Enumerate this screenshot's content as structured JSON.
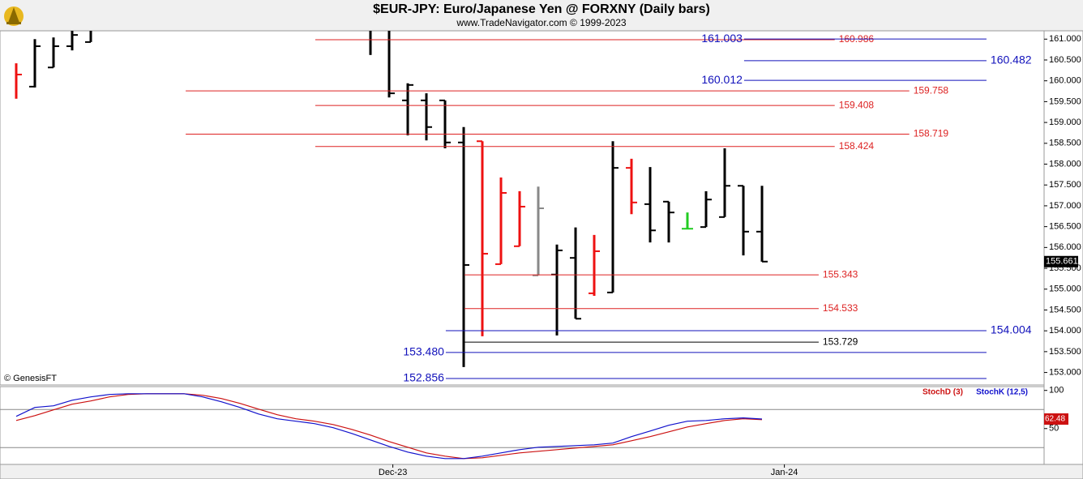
{
  "chart_data": {
    "type": "ohlc",
    "title": "$EUR-JPY:  Euro/Japanese Yen @ FORXNY  (Daily bars)",
    "subtitle": "www.TradeNavigator.com © 1999-2023",
    "watermark": "© GenesisFT",
    "xlim": [
      -0.87,
      55.13
    ],
    "xticks": [
      {
        "value": 20.2,
        "label": "Dec-23"
      },
      {
        "value": 41.2,
        "label": "Jan-24"
      }
    ],
    "ylim": [
      152.7,
      161.2
    ],
    "yticks": [
      {
        "value": 153,
        "label": "153.000"
      },
      {
        "value": 153.5,
        "label": "153.500"
      },
      {
        "value": 154,
        "label": "154.000"
      },
      {
        "value": 154.5,
        "label": "154.500"
      },
      {
        "value": 155,
        "label": "155.000"
      },
      {
        "value": 155.5,
        "label": "155.500"
      },
      {
        "value": 156,
        "label": "156.000"
      },
      {
        "value": 156.5,
        "label": "156.500"
      },
      {
        "value": 157,
        "label": "157.000"
      },
      {
        "value": 157.5,
        "label": "157.500"
      },
      {
        "value": 158,
        "label": "158.000"
      },
      {
        "value": 158.5,
        "label": "158.500"
      },
      {
        "value": 159,
        "label": "159.000"
      },
      {
        "value": 159.5,
        "label": "159.500"
      },
      {
        "value": 160,
        "label": "160.000"
      },
      {
        "value": 160.5,
        "label": "160.500"
      },
      {
        "value": 161,
        "label": "161.000"
      }
    ],
    "bars": {
      "x": [
        0,
        1,
        2,
        3,
        4,
        19,
        20,
        21,
        22,
        23,
        24,
        25,
        26,
        27,
        28,
        29,
        30,
        31,
        32,
        33,
        34,
        35,
        36,
        37,
        38,
        39,
        40
      ],
      "open": [
        null,
        159.86,
        160.32,
        160.83,
        160.93,
        null,
        null,
        159.53,
        159.53,
        159.53,
        158.52,
        158.55,
        155.6,
        156.03,
        155.33,
        155.35,
        155.75,
        154.9,
        154.92,
        157.91,
        157.04,
        157.1,
        156.45,
        156.49,
        156.73,
        157.48,
        156.38
      ],
      "high": [
        160.42,
        161.0,
        161.04,
        161.2,
        161.2,
        161.2,
        161.2,
        159.94,
        159.7,
        159.53,
        158.89,
        158.55,
        157.68,
        157.35,
        157.46,
        156.07,
        156.48,
        156.3,
        158.55,
        158.13,
        157.93,
        157.1,
        156.84,
        157.35,
        158.38,
        157.48,
        157.48
      ],
      "low": [
        159.57,
        159.84,
        160.32,
        160.73,
        160.93,
        160.62,
        159.6,
        158.69,
        158.57,
        158.38,
        153.13,
        153.87,
        155.6,
        156.03,
        155.33,
        153.89,
        154.29,
        154.84,
        154.92,
        156.8,
        156.12,
        156.12,
        156.45,
        156.49,
        156.73,
        155.81,
        155.66
      ],
      "close": [
        160.15,
        160.83,
        160.83,
        161.1,
        null,
        null,
        159.7,
        159.9,
        158.89,
        158.52,
        155.58,
        155.85,
        157.31,
        156.98,
        156.94,
        155.93,
        154.29,
        155.91,
        157.91,
        157.08,
        156.41,
        156.84,
        156.45,
        157.15,
        157.48,
        156.38,
        155.661
      ],
      "colors": [
        "#ee1111",
        "#000000",
        "#000000",
        "#000000",
        "#000000",
        "#000000",
        "#000000",
        "#000000",
        "#000000",
        "#000000",
        "#000000",
        "#ee1111",
        "#ee1111",
        "#ee1111",
        "#888888",
        "#000000",
        "#000000",
        "#ee1111",
        "#000000",
        "#ee1111",
        "#000000",
        "#000000",
        "#22cc22",
        "#000000",
        "#000000",
        "#000000",
        "#000000"
      ]
    },
    "levels": {
      "values": [
        160.986,
        161.003,
        160.482,
        160.012,
        159.758,
        159.408,
        158.719,
        158.424,
        155.343,
        154.533,
        154.004,
        153.729,
        153.48,
        152.856
      ],
      "value_labels": [
        "160.986",
        "161.003",
        "160.482",
        "160.012",
        "159.758",
        "159.408",
        "158.719",
        "158.424",
        "155.343",
        "154.533",
        "154.004",
        "153.729",
        "153.480",
        "152.856"
      ],
      "colors": [
        "#dd2222",
        "#1111bb",
        "#1111bb",
        "#1111bb",
        "#dd2222",
        "#dd2222",
        "#dd2222",
        "#dd2222",
        "#dd2222",
        "#dd2222",
        "#1111bb",
        "#000000",
        "#1111bb",
        "#1111bb"
      ],
      "x_from": [
        16.04,
        39.04,
        39.04,
        39.04,
        9.09,
        16.04,
        9.09,
        16.04,
        24.04,
        24.04,
        23.04,
        24.04,
        23.04,
        23.04
      ],
      "x_to": [
        43.9,
        52.04,
        52.04,
        52.04,
        47.9,
        43.9,
        47.9,
        43.9,
        43.04,
        43.04,
        52.04,
        43.04,
        52.04,
        52.04
      ],
      "label_side": [
        "right",
        "left",
        "right",
        "left",
        "right",
        "right",
        "right",
        "right",
        "right",
        "right",
        "right",
        "right",
        "left",
        "left"
      ]
    },
    "stoch": {
      "ylim": [
        3,
        105
      ],
      "yticks": [
        50,
        100
      ],
      "ref_lines": [
        25,
        75
      ],
      "series": [
        {
          "name": "StochD (3)",
          "color": "#cc1111",
          "values": [
            60.6,
            67,
            74.5,
            81.9,
            86.2,
            91.5,
            94.7,
            95.7,
            95.7,
            95.7,
            93.6,
            89.4,
            83,
            75.5,
            68.1,
            62.8,
            59.6,
            55.3,
            48.9,
            41.5,
            33,
            25.5,
            18.1,
            13.8,
            10.6,
            11.7,
            14.9,
            18.1,
            20.2,
            22.3,
            24.5,
            26.6,
            28.7,
            34,
            39.4,
            45.7,
            52.1,
            56.4,
            60.6,
            62.8,
            61.7
          ]
        },
        {
          "name": "StochK (12,5)",
          "color": "#1111cc",
          "values": [
            66,
            77.7,
            79.8,
            87.2,
            91.5,
            94.7,
            95.7,
            95.7,
            95.7,
            95.7,
            91.5,
            85.1,
            77.7,
            69.1,
            62.8,
            59.6,
            56.4,
            51.1,
            43.6,
            35.1,
            26.6,
            19.1,
            13.8,
            10.6,
            10.6,
            13.8,
            18.1,
            22.3,
            25.5,
            26.6,
            27.7,
            28.7,
            30.9,
            39.4,
            46.8,
            54.3,
            59.6,
            60.6,
            62.8,
            64,
            62.48
          ]
        }
      ]
    }
  }
}
